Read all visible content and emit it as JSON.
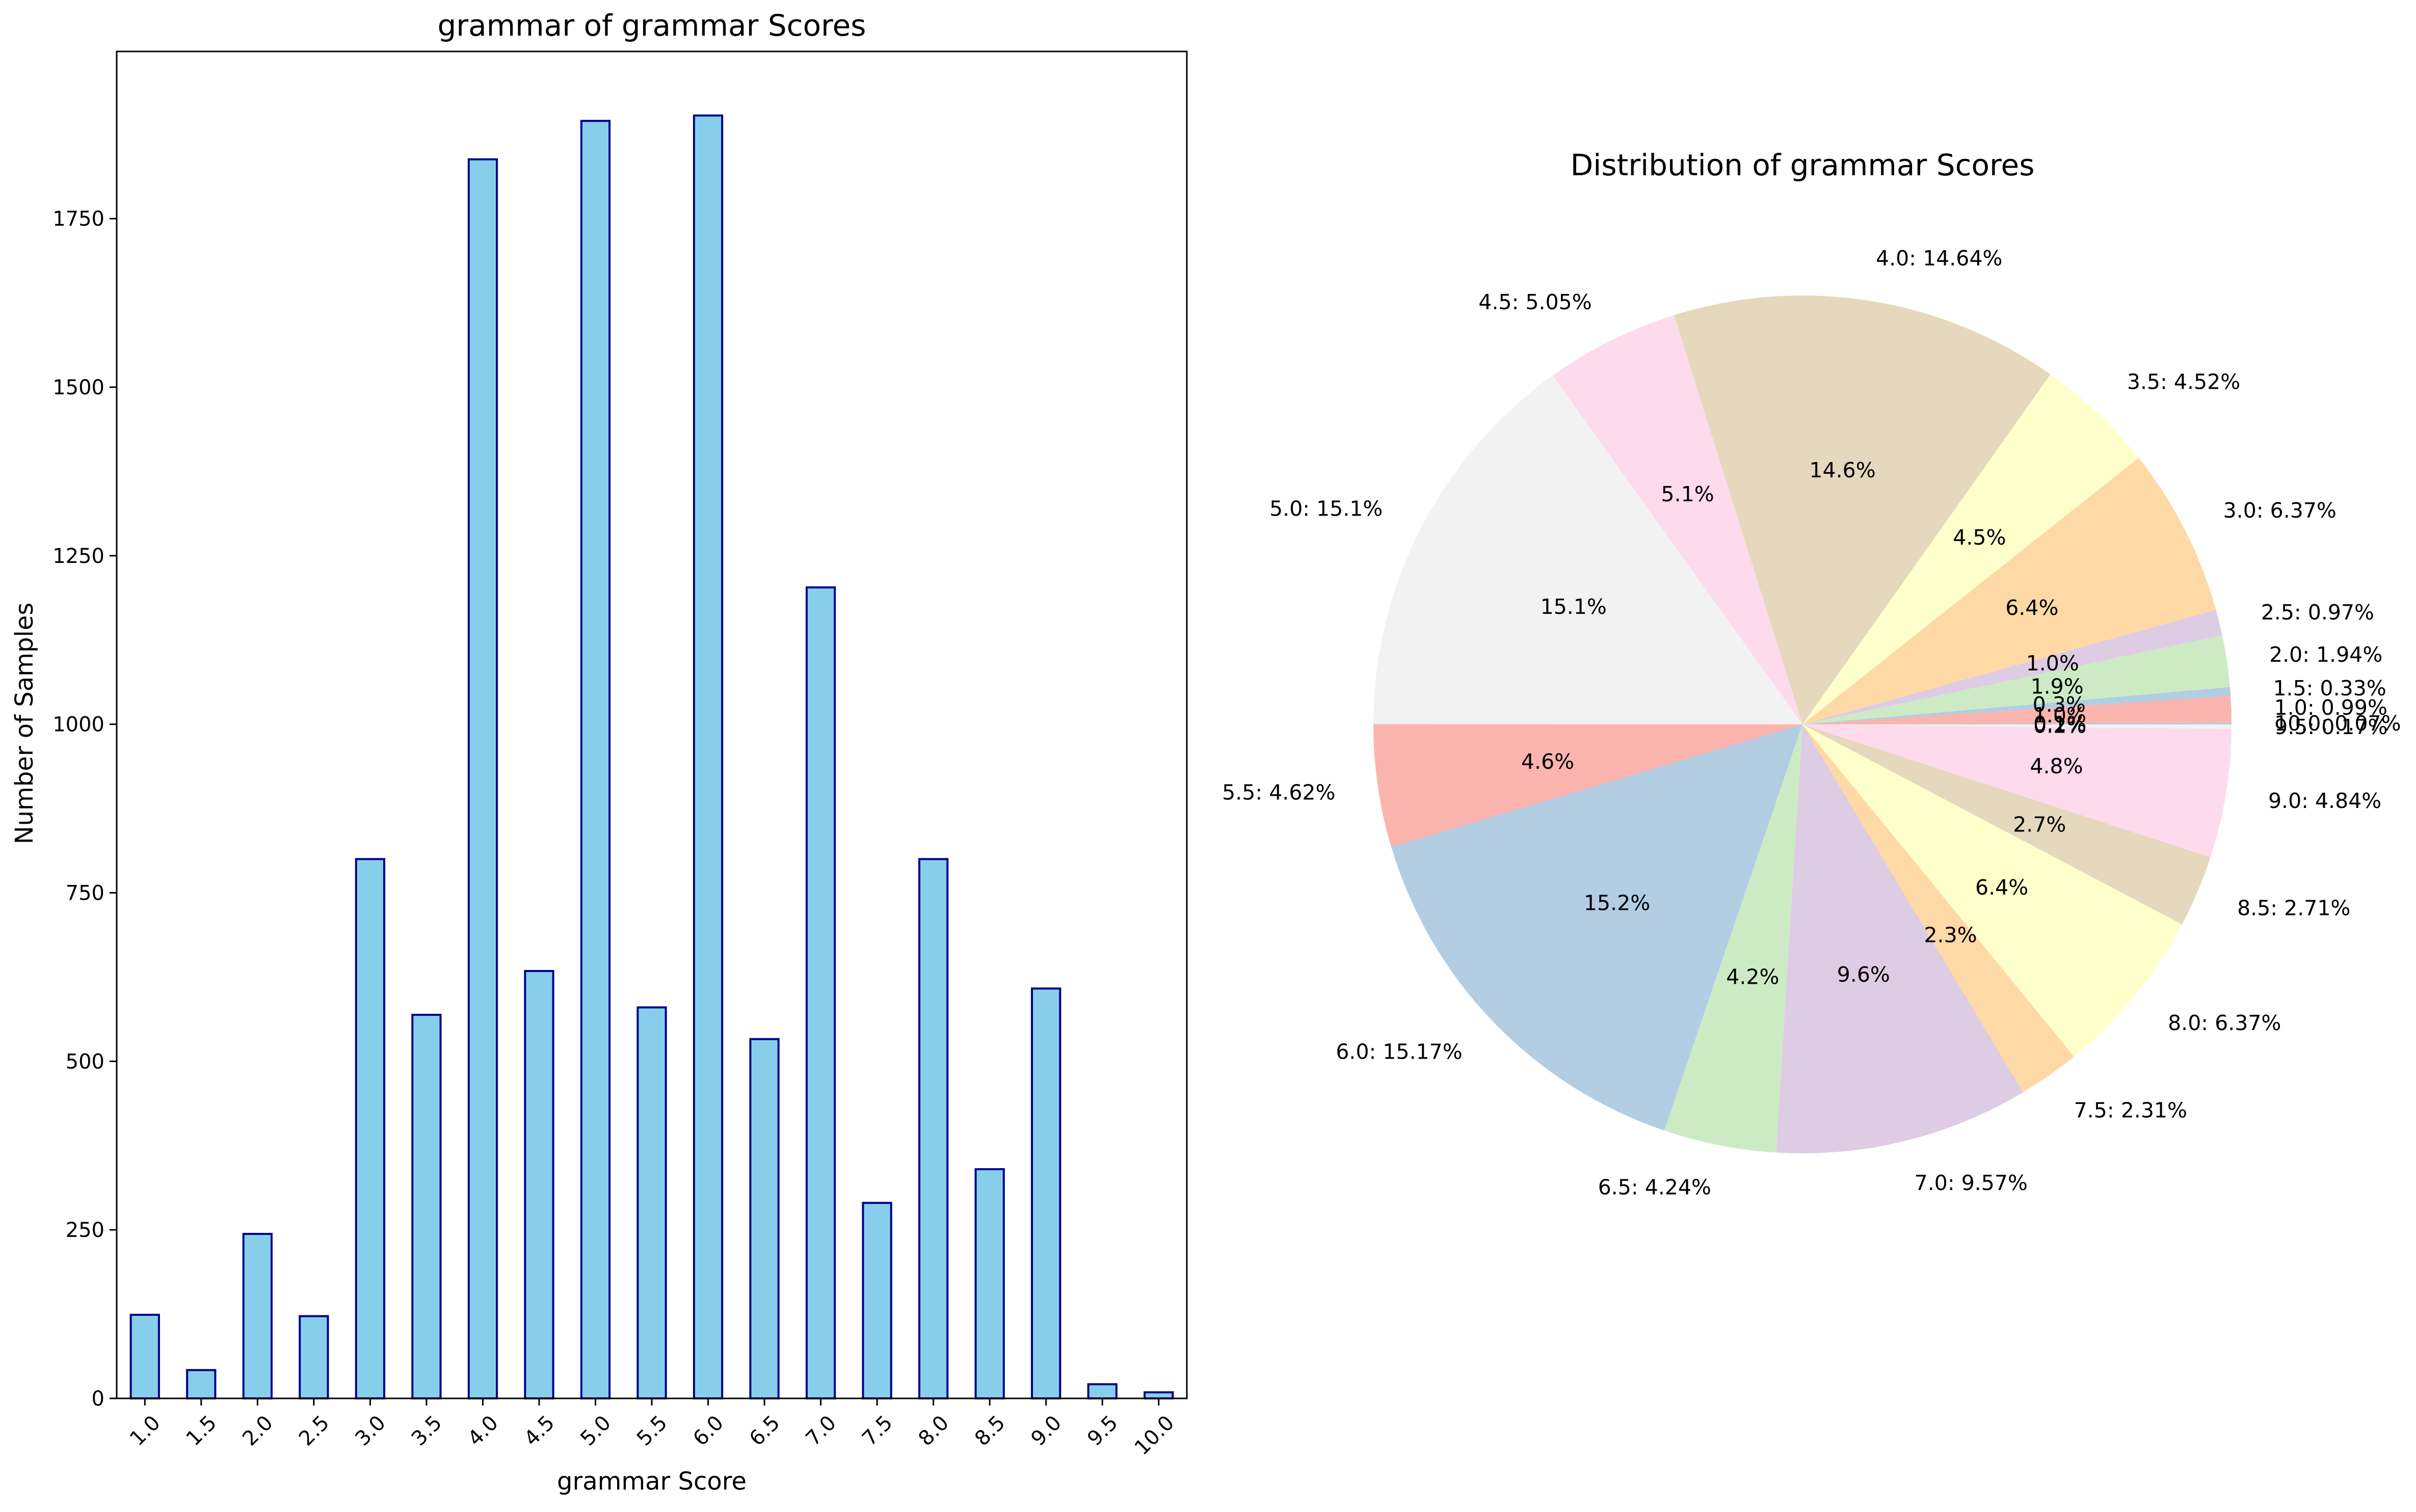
{
  "chart_data": [
    {
      "type": "bar",
      "title": "grammar of grammar Scores",
      "xlabel": "grammar Score",
      "ylabel": "Number of Samples",
      "categories": [
        "1.0",
        "1.5",
        "2.0",
        "2.5",
        "3.0",
        "3.5",
        "4.0",
        "4.5",
        "5.0",
        "5.5",
        "6.0",
        "6.5",
        "7.0",
        "7.5",
        "8.0",
        "8.5",
        "9.0",
        "9.5",
        "10.0"
      ],
      "values": [
        124,
        42,
        244,
        122,
        800,
        569,
        1838,
        634,
        1895,
        580,
        1903,
        533,
        1203,
        290,
        800,
        340,
        608,
        21,
        9
      ],
      "yticks": [
        0,
        250,
        500,
        750,
        1000,
        1250,
        1500,
        1750
      ],
      "ylim": [
        0,
        1998
      ],
      "bar_color": "#87ceeb",
      "edge_color": "#00008b",
      "grid": false
    },
    {
      "type": "pie",
      "title": "Distribution of grammar Scores",
      "slices": [
        {
          "label": "10.0: 0.07%",
          "pct_text": "0.1%",
          "value": 0.07,
          "color": "#b3cde3"
        },
        {
          "label": "1.0: 0.99%",
          "pct_text": "1.0%",
          "value": 0.99,
          "color": "#fbb4ae"
        },
        {
          "label": "1.5: 0.33%",
          "pct_text": "0.3%",
          "value": 0.33,
          "color": "#b3cde3"
        },
        {
          "label": "2.0: 1.94%",
          "pct_text": "1.9%",
          "value": 1.94,
          "color": "#ccebc5"
        },
        {
          "label": "2.5: 0.97%",
          "pct_text": "1.0%",
          "value": 0.97,
          "color": "#decbe4"
        },
        {
          "label": "3.0: 6.37%",
          "pct_text": "6.4%",
          "value": 6.37,
          "color": "#fed9a6"
        },
        {
          "label": "3.5: 4.52%",
          "pct_text": "4.5%",
          "value": 4.52,
          "color": "#ffffcc"
        },
        {
          "label": "4.0: 14.64%",
          "pct_text": "14.6%",
          "value": 14.64,
          "color": "#e5d8bd"
        },
        {
          "label": "4.5: 5.05%",
          "pct_text": "5.1%",
          "value": 5.05,
          "color": "#fddaec"
        },
        {
          "label": "5.0: 15.1%",
          "pct_text": "15.1%",
          "value": 15.1,
          "color": "#f2f2f2"
        },
        {
          "label": "5.5: 4.62%",
          "pct_text": "4.6%",
          "value": 4.62,
          "color": "#fbb4ae"
        },
        {
          "label": "6.0: 15.17%",
          "pct_text": "15.2%",
          "value": 15.17,
          "color": "#b3cde3"
        },
        {
          "label": "6.5: 4.24%",
          "pct_text": "4.2%",
          "value": 4.24,
          "color": "#ccebc5"
        },
        {
          "label": "7.0: 9.57%",
          "pct_text": "9.6%",
          "value": 9.57,
          "color": "#decbe4"
        },
        {
          "label": "7.5: 2.31%",
          "pct_text": "2.3%",
          "value": 2.31,
          "color": "#fed9a6"
        },
        {
          "label": "8.0: 6.37%",
          "pct_text": "6.4%",
          "value": 6.37,
          "color": "#ffffcc"
        },
        {
          "label": "8.5: 2.71%",
          "pct_text": "2.7%",
          "value": 2.71,
          "color": "#e5d8bd"
        },
        {
          "label": "9.0: 4.84%",
          "pct_text": "4.8%",
          "value": 4.84,
          "color": "#fddaec"
        },
        {
          "label": "9.5: 0.17%",
          "pct_text": "0.2%",
          "value": 0.17,
          "color": "#f2f2f2"
        }
      ],
      "start_angle_deg": 0,
      "direction": "counterclockwise"
    }
  ]
}
